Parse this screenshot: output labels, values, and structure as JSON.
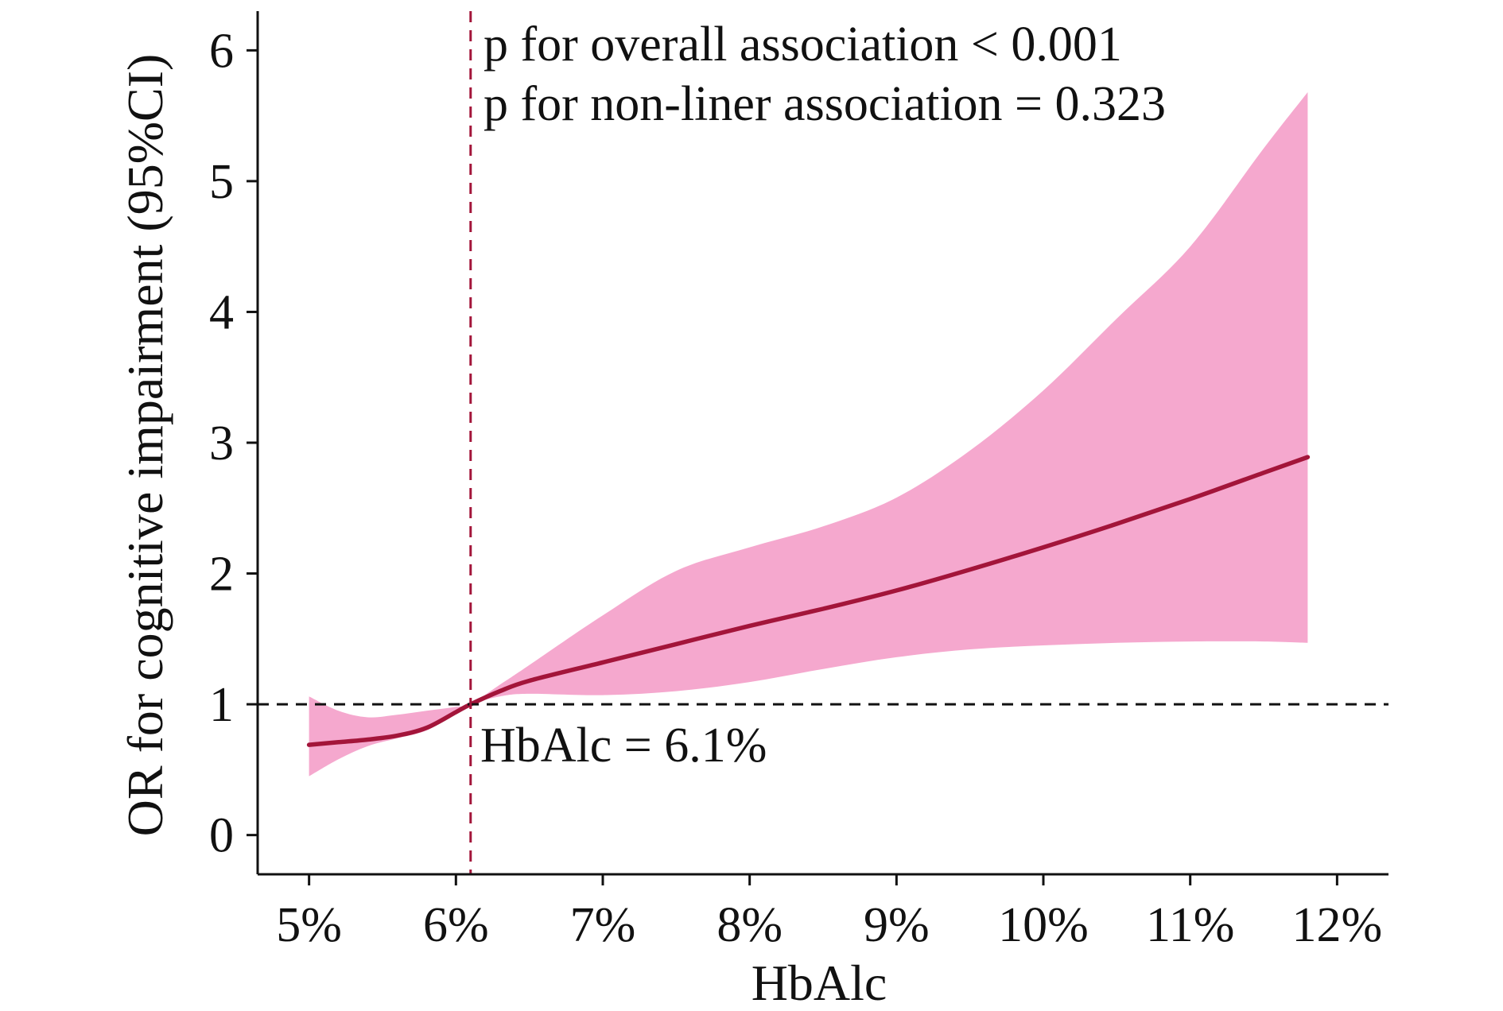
{
  "chart_data": {
    "type": "line",
    "title": "",
    "xlabel": "HbAlc",
    "ylabel": "OR for cognitive impairment (95%CI)",
    "xlim": [
      4.65,
      12.35
    ],
    "ylim": [
      -0.3,
      6.3
    ],
    "x_ticks": [
      5,
      6,
      7,
      8,
      9,
      10,
      11,
      12
    ],
    "x_tick_labels": [
      "5%",
      "6%",
      "7%",
      "8%",
      "9%",
      "10%",
      "11%",
      "12%"
    ],
    "y_ticks": [
      0,
      1,
      2,
      3,
      4,
      5,
      6
    ],
    "y_tick_labels": [
      "0",
      "1",
      "2",
      "3",
      "4",
      "5",
      "6"
    ],
    "grid": false,
    "reference_lines": {
      "horizontal_y": 1,
      "vertical_x": 6.1
    },
    "series": [
      {
        "color": "#a3153a",
        "x": [
          5.0,
          5.2,
          5.4,
          5.6,
          5.8,
          6.0,
          6.1,
          6.3,
          6.5,
          7.0,
          7.5,
          8.0,
          8.5,
          9.0,
          9.5,
          10.0,
          10.5,
          11.0,
          11.5,
          11.8
        ],
        "y": [
          0.69,
          0.71,
          0.73,
          0.76,
          0.82,
          0.94,
          1.0,
          1.1,
          1.18,
          1.32,
          1.46,
          1.6,
          1.73,
          1.87,
          2.03,
          2.2,
          2.38,
          2.57,
          2.77,
          2.89
        ],
        "lower": [
          0.45,
          0.58,
          0.68,
          0.74,
          0.8,
          0.93,
          1.0,
          1.06,
          1.08,
          1.07,
          1.1,
          1.17,
          1.27,
          1.36,
          1.42,
          1.45,
          1.47,
          1.48,
          1.48,
          1.47
        ],
        "upper": [
          1.06,
          0.95,
          0.9,
          0.92,
          0.95,
          0.98,
          1.0,
          1.15,
          1.3,
          1.68,
          2.02,
          2.2,
          2.36,
          2.58,
          2.94,
          3.4,
          3.95,
          4.5,
          5.25,
          5.68
        ]
      }
    ],
    "colors": {
      "line": "#a3153a",
      "band": "#f5a8ce",
      "vertical_ref": "#a3153a",
      "horizontal_ref": "#111111"
    },
    "annotations": {
      "p_overall": "p for overall association < 0.001",
      "p_nonlinear": "p for non-liner association = 0.323",
      "threshold": "HbAlc = 6.1%"
    }
  }
}
